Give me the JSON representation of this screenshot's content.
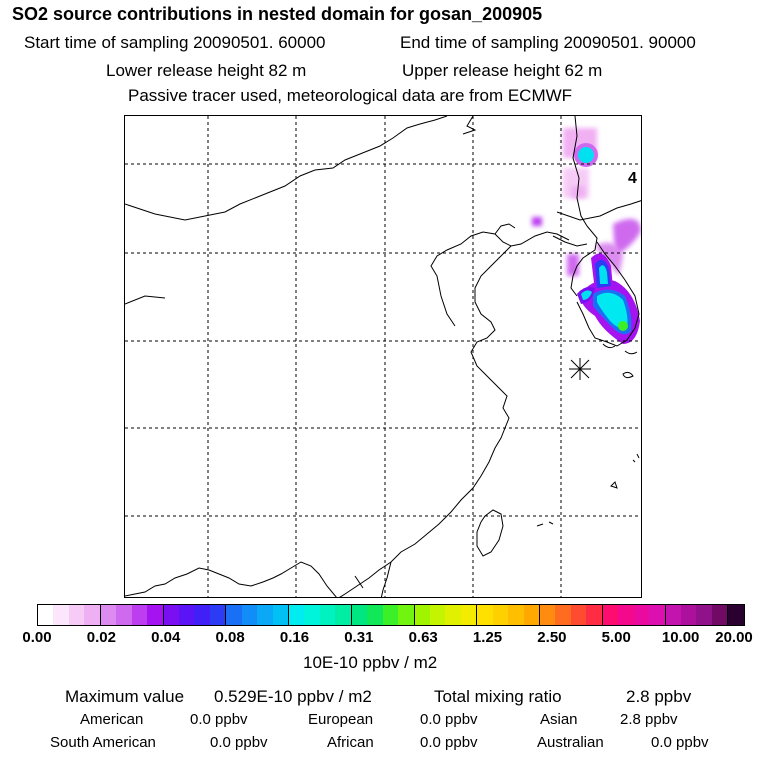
{
  "header": {
    "title": "SO2 source contributions in nested domain for gosan_200905",
    "start_time": "Start time of sampling 20090501. 60000",
    "end_time": "End time of sampling 20090501. 90000",
    "lower_height": "Lower release height   82 m",
    "upper_height": "Upper release height   62 m",
    "note": "Passive tracer used, meteorological data are from ECMWF"
  },
  "map": {
    "panel_label": "4",
    "receptor_marker": "gosan-receptor-asterisk"
  },
  "colorbar": {
    "tick_labels": [
      "0.00",
      "0.02",
      "0.04",
      "0.08",
      "0.16",
      "0.31",
      "0.63",
      "1.25",
      "2.50",
      "5.00",
      "10.00",
      "20.00"
    ],
    "unit": "10E-10 ppbv / m2",
    "colors": [
      "#ffffff",
      "#fbe6fb",
      "#f6ccf6",
      "#eeb0f2",
      "#dc8cf0",
      "#cf6aef",
      "#bc3ef0",
      "#a514f0",
      "#7a10f2",
      "#5a14f6",
      "#4020f6",
      "#2c3cf4",
      "#1a70f4",
      "#128cf6",
      "#0aa8f6",
      "#00c0f4",
      "#00ecf0",
      "#00f4dc",
      "#00f2c0",
      "#00eea4",
      "#00e680",
      "#10e858",
      "#3cf028",
      "#70f410",
      "#a0f400",
      "#c4f400",
      "#e0f000",
      "#f4ec00",
      "#ffe000",
      "#ffd000",
      "#ffbe00",
      "#ffa800",
      "#ff8c10",
      "#ff6c20",
      "#ff4c30",
      "#ff2c44",
      "#ff0c70",
      "#f4088c",
      "#ea0aa0",
      "#dc10b0",
      "#c414b0",
      "#ac109c",
      "#90128a",
      "#700a64",
      "#2a0030"
    ]
  },
  "stats": {
    "max_label": "Maximum value",
    "max_value": "0.529E-10 ppbv / m2",
    "total_label": "Total mixing ratio",
    "total_value": "2.8 ppbv",
    "regions": [
      {
        "name": "American",
        "value": "0.0 ppbv"
      },
      {
        "name": "European",
        "value": "0.0 ppbv"
      },
      {
        "name": "Asian",
        "value": "2.8 ppbv"
      },
      {
        "name": "South American",
        "value": "0.0 ppbv"
      },
      {
        "name": "African",
        "value": "0.0 ppbv"
      },
      {
        "name": "Australian",
        "value": "0.0 ppbv"
      }
    ]
  }
}
